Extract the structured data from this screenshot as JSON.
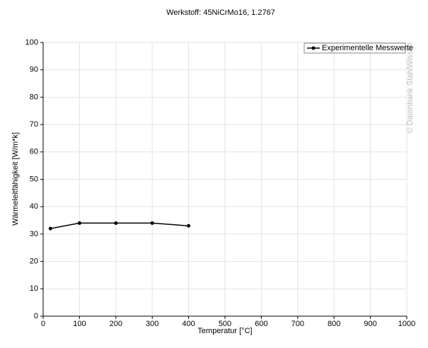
{
  "chart_data": {
    "type": "line",
    "title": "Werkstoff: 45NiCrMo16, 1.2767",
    "x_label": "Temperatur [°C]",
    "y_label": "Wärmeleitfähigkeit [W/m*k]",
    "watermark": "© Datenbank StahlWissen",
    "x": [
      20,
      100,
      200,
      300,
      400
    ],
    "series": [
      {
        "name": "Experimentelle Messwerte",
        "color": "#000000",
        "values": [
          32,
          34,
          34,
          34,
          33
        ]
      }
    ],
    "xlim": [
      0,
      1000
    ],
    "xticks": [
      0,
      100,
      200,
      300,
      400,
      500,
      600,
      700,
      800,
      900,
      1000
    ],
    "ylim": [
      0,
      100
    ],
    "yticks": [
      0,
      10,
      20,
      30,
      40,
      50,
      60,
      70,
      80,
      90,
      100
    ],
    "grid": true,
    "legend": "upper right"
  }
}
